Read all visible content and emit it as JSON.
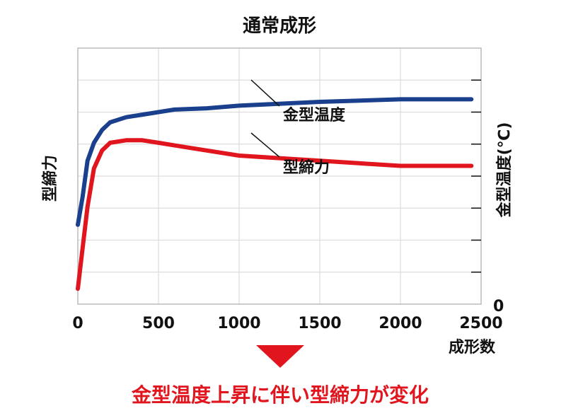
{
  "chart_data": {
    "type": "line",
    "title": "通常成形",
    "xlabel": "成形数",
    "ylabel_left": "型締力",
    "ylabel_right": "金型温度(℃)",
    "xlim": [
      0,
      2500
    ],
    "x_ticks": [
      "0",
      "500",
      "1000",
      "1500",
      "2000",
      "2500"
    ],
    "right_zero_label": "0",
    "grid": true,
    "series": [
      {
        "name": "金型温度",
        "color": "#1a3f8c",
        "x": [
          0,
          30,
          60,
          100,
          150,
          200,
          300,
          400,
          500,
          600,
          800,
          1000,
          1500,
          2000,
          2440
        ],
        "y": [
          0.31,
          0.42,
          0.56,
          0.63,
          0.68,
          0.71,
          0.73,
          0.74,
          0.75,
          0.76,
          0.765,
          0.775,
          0.79,
          0.8,
          0.8
        ]
      },
      {
        "name": "型締力",
        "color": "#e0151e",
        "x": [
          0,
          30,
          60,
          100,
          150,
          200,
          300,
          400,
          500,
          600,
          800,
          1000,
          1500,
          2000,
          2440
        ],
        "y": [
          0.06,
          0.22,
          0.38,
          0.53,
          0.6,
          0.63,
          0.64,
          0.64,
          0.63,
          0.62,
          0.6,
          0.58,
          0.56,
          0.54,
          0.54
        ]
      }
    ],
    "annotation": "金型温度上昇に伴い型締力が変化",
    "annotation_color": "#e0151e"
  }
}
